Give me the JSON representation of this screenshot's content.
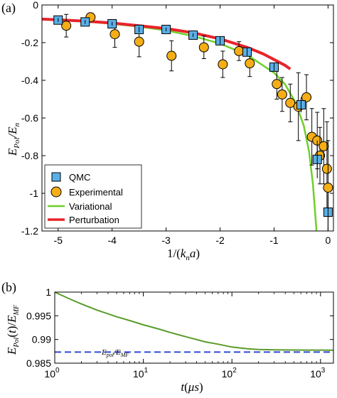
{
  "chart_data": [
    {
      "type": "scatter",
      "panel_label": "(a)",
      "xlabel": "1/(k_n a)",
      "ylabel": "E_Pol/E_n",
      "xlim": [
        -5.3,
        0.1
      ],
      "ylim": [
        -1.2,
        0
      ],
      "xticks": [
        -5,
        -4,
        -3,
        -2,
        -1,
        0
      ],
      "xtick_labels": [
        "-5",
        "-4",
        "-3",
        "-2",
        "-1",
        "0"
      ],
      "yticks": [
        -1.2,
        -1,
        -0.8,
        -0.6,
        -0.4,
        -0.2,
        0
      ],
      "ytick_labels": [
        "-1.2",
        "-1",
        "-0.8",
        "-0.6",
        "-0.4",
        "-0.2",
        "0"
      ],
      "grid": false,
      "legend_position": "bottom-left",
      "series": [
        {
          "name": "QMC",
          "kind": "square",
          "color": "#5aafe6",
          "points": [
            {
              "x": -5.0,
              "y": -0.08,
              "err": 0.01
            },
            {
              "x": -4.5,
              "y": -0.09,
              "err": 0.01
            },
            {
              "x": -4.0,
              "y": -0.1,
              "err": 0.01
            },
            {
              "x": -3.5,
              "y": -0.13,
              "err": 0.015
            },
            {
              "x": -3.0,
              "y": -0.13,
              "err": 0.01
            },
            {
              "x": -2.5,
              "y": -0.16,
              "err": 0.01
            },
            {
              "x": -2.0,
              "y": -0.19,
              "err": 0.02
            },
            {
              "x": -1.5,
              "y": -0.25,
              "err": 0.02
            },
            {
              "x": -1.0,
              "y": -0.33,
              "err": 0.02
            },
            {
              "x": -0.5,
              "y": -0.53,
              "err": 0.04
            },
            {
              "x": -0.2,
              "y": -0.82,
              "err": 0.1
            },
            {
              "x": 0.0,
              "y": -1.1,
              "err": 0.1
            }
          ]
        },
        {
          "name": "Experimental",
          "kind": "circle",
          "color": "#f5ae17",
          "points": [
            {
              "x": -4.85,
              "y": -0.11,
              "err": 0.06
            },
            {
              "x": -4.4,
              "y": -0.065,
              "err": 0.02
            },
            {
              "x": -3.95,
              "y": -0.155,
              "err": 0.07
            },
            {
              "x": -3.5,
              "y": -0.195,
              "err": 0.08
            },
            {
              "x": -2.9,
              "y": -0.27,
              "err": 0.08
            },
            {
              "x": -2.3,
              "y": -0.225,
              "err": 0.06
            },
            {
              "x": -1.95,
              "y": -0.315,
              "err": 0.07
            },
            {
              "x": -1.65,
              "y": -0.245,
              "err": 0.05
            },
            {
              "x": -1.45,
              "y": -0.31,
              "err": 0.07
            },
            {
              "x": -0.95,
              "y": -0.42,
              "err": 0.08
            },
            {
              "x": -0.85,
              "y": -0.475,
              "err": 0.09
            },
            {
              "x": -0.7,
              "y": -0.52,
              "err": 0.1
            },
            {
              "x": -0.55,
              "y": -0.54,
              "err": 0.18
            },
            {
              "x": -0.4,
              "y": -0.49,
              "err": 0.12
            },
            {
              "x": -0.3,
              "y": -0.7,
              "err": 0.15
            },
            {
              "x": -0.2,
              "y": -0.72,
              "err": 0.15
            },
            {
              "x": -0.15,
              "y": -0.8,
              "err": 0.15
            },
            {
              "x": -0.08,
              "y": -0.75,
              "err": 0.2
            },
            {
              "x": -0.02,
              "y": -0.87,
              "err": 0.25
            },
            {
              "x": 0.0,
              "y": -0.97,
              "err": 0.25
            }
          ]
        },
        {
          "name": "Variational",
          "kind": "line",
          "color": "#6fcf2a",
          "points": [
            {
              "x": -5.3,
              "y": -0.075
            },
            {
              "x": -5.0,
              "y": -0.08
            },
            {
              "x": -4.5,
              "y": -0.088
            },
            {
              "x": -4.0,
              "y": -0.1
            },
            {
              "x": -3.5,
              "y": -0.115
            },
            {
              "x": -3.0,
              "y": -0.135
            },
            {
              "x": -2.5,
              "y": -0.165
            },
            {
              "x": -2.0,
              "y": -0.205
            },
            {
              "x": -1.5,
              "y": -0.265
            },
            {
              "x": -1.0,
              "y": -0.36
            },
            {
              "x": -0.8,
              "y": -0.42
            },
            {
              "x": -0.6,
              "y": -0.52
            },
            {
              "x": -0.45,
              "y": -0.64
            },
            {
              "x": -0.35,
              "y": -0.78
            },
            {
              "x": -0.28,
              "y": -0.95
            },
            {
              "x": -0.24,
              "y": -1.1
            },
            {
              "x": -0.215,
              "y": -1.2
            }
          ]
        },
        {
          "name": "Perturbation",
          "kind": "line",
          "color": "#e8232a",
          "points": [
            {
              "x": -5.3,
              "y": -0.075
            },
            {
              "x": -5.0,
              "y": -0.079
            },
            {
              "x": -4.5,
              "y": -0.086
            },
            {
              "x": -4.0,
              "y": -0.096
            },
            {
              "x": -3.5,
              "y": -0.11
            },
            {
              "x": -3.0,
              "y": -0.125
            },
            {
              "x": -2.5,
              "y": -0.148
            },
            {
              "x": -2.0,
              "y": -0.18
            },
            {
              "x": -1.5,
              "y": -0.225
            },
            {
              "x": -1.2,
              "y": -0.26
            },
            {
              "x": -1.0,
              "y": -0.29
            },
            {
              "x": -0.8,
              "y": -0.32
            },
            {
              "x": -0.7,
              "y": -0.34
            }
          ]
        }
      ]
    },
    {
      "type": "line",
      "panel_label": "(b)",
      "xlabel": "t(μs)",
      "ylabel": "E_Pol(t)/E_MF",
      "xscale": "log",
      "xlim": [
        1,
        1400
      ],
      "ylim": [
        0.985,
        1.0
      ],
      "xticks": [
        1,
        10,
        100,
        1000
      ],
      "xtick_labels": [
        "10^0",
        "10^1",
        "10^2",
        "10^3"
      ],
      "yticks": [
        0.985,
        0.99,
        0.995,
        1.0
      ],
      "ytick_labels": [
        "0.985",
        "0.99",
        "0.995",
        "1"
      ],
      "grid": false,
      "annotation": "E_pol/E_MF",
      "series": [
        {
          "kind": "line",
          "color": "#5a9c2a",
          "points": [
            {
              "x": 1,
              "y": 1.0
            },
            {
              "x": 1.5,
              "y": 0.9985
            },
            {
              "x": 2,
              "y": 0.9975
            },
            {
              "x": 3,
              "y": 0.9962
            },
            {
              "x": 5,
              "y": 0.9948
            },
            {
              "x": 7,
              "y": 0.994
            },
            {
              "x": 10,
              "y": 0.9931
            },
            {
              "x": 15,
              "y": 0.9922
            },
            {
              "x": 20,
              "y": 0.9915
            },
            {
              "x": 30,
              "y": 0.9906
            },
            {
              "x": 50,
              "y": 0.9895
            },
            {
              "x": 70,
              "y": 0.989
            },
            {
              "x": 100,
              "y": 0.9884
            },
            {
              "x": 150,
              "y": 0.98805
            },
            {
              "x": 200,
              "y": 0.9879
            },
            {
              "x": 300,
              "y": 0.98782
            },
            {
              "x": 500,
              "y": 0.98778
            },
            {
              "x": 1000,
              "y": 0.98776
            },
            {
              "x": 1400,
              "y": 0.98775
            }
          ]
        },
        {
          "kind": "dashed-line",
          "color": "#2f47d6",
          "points": [
            {
              "x": 1,
              "y": 0.98735
            },
            {
              "x": 1400,
              "y": 0.98735
            }
          ]
        }
      ]
    }
  ]
}
